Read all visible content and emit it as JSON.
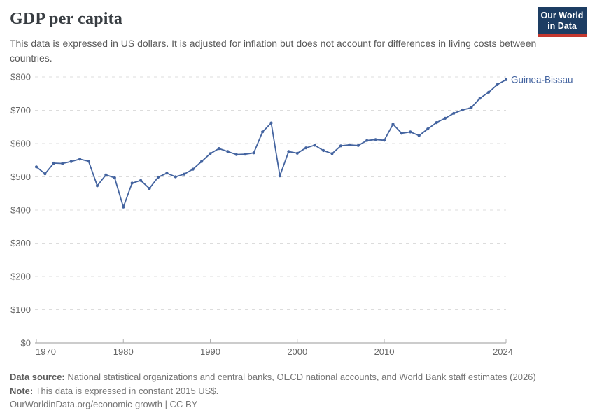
{
  "header": {
    "title": "GDP per capita",
    "subtitle": "This data is expressed in US dollars. It is adjusted for inflation but does not account for differences in living costs between countries."
  },
  "logo": {
    "line1": "Our World",
    "line2": "in Data",
    "bg_color": "#1d3d63",
    "accent_color": "#c5382f"
  },
  "footer": {
    "source_label": "Data source:",
    "source_text": " National statistical organizations and central banks, OECD national accounts, and World Bank staff estimates (2026)",
    "note_label": "Note:",
    "note_text": " This data is expressed in constant 2015 US$.",
    "citation": "OurWorldinData.org/economic-growth | CC BY"
  },
  "chart_data": {
    "type": "line",
    "title": "GDP per capita",
    "entity_label": "Guinea-Bissau",
    "unit": "constant 2015 US$",
    "line_color": "#4464a0",
    "grid_color": "#dcdcdc",
    "axis_color": "#999999",
    "tick_text_color": "#666666",
    "xlim": [
      1970,
      2024
    ],
    "ylim": [
      0,
      800
    ],
    "grid": true,
    "legend_position": "end-of-line",
    "x_ticks": {
      "values": [
        1970,
        1980,
        1990,
        2000,
        2010,
        2024
      ],
      "labels": [
        "1970",
        "1980",
        "1990",
        "2000",
        "2010",
        "2024"
      ]
    },
    "y_ticks": {
      "values": [
        0,
        100,
        200,
        300,
        400,
        500,
        600,
        700,
        800
      ],
      "labels": [
        "$0",
        "$100",
        "$200",
        "$300",
        "$400",
        "$500",
        "$600",
        "$700",
        "$800"
      ]
    },
    "series": [
      {
        "name": "Guinea-Bissau",
        "x": [
          1970,
          1971,
          1972,
          1973,
          1974,
          1975,
          1976,
          1977,
          1978,
          1979,
          1980,
          1981,
          1982,
          1983,
          1984,
          1985,
          1986,
          1987,
          1988,
          1989,
          1990,
          1991,
          1992,
          1993,
          1994,
          1995,
          1996,
          1997,
          1998,
          1999,
          2000,
          2001,
          2002,
          2003,
          2004,
          2005,
          2006,
          2007,
          2008,
          2009,
          2010,
          2011,
          2012,
          2013,
          2014,
          2015,
          2016,
          2017,
          2018,
          2019,
          2020,
          2021,
          2022,
          2023,
          2024
        ],
        "values": [
          530,
          509,
          541,
          540,
          546,
          553,
          547,
          473,
          506,
          497,
          409,
          481,
          489,
          465,
          499,
          511,
          500,
          508,
          523,
          546,
          570,
          585,
          576,
          567,
          568,
          572,
          635,
          662,
          503,
          576,
          571,
          587,
          595,
          579,
          570,
          593,
          596,
          594,
          609,
          612,
          610,
          658,
          631,
          635,
          624,
          644,
          663,
          676,
          691,
          701,
          708,
          736,
          754,
          777,
          792
        ]
      }
    ]
  }
}
